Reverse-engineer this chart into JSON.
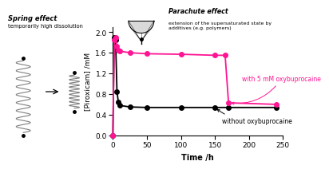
{
  "black_x": [
    0,
    2,
    4,
    6,
    8,
    10,
    25,
    50,
    100,
    150,
    170,
    240
  ],
  "black_y": [
    0,
    1.9,
    1.85,
    0.85,
    0.65,
    0.58,
    0.55,
    0.54,
    0.54,
    0.54,
    0.54,
    0.54
  ],
  "magenta_x": [
    0,
    2,
    4,
    6,
    8,
    10,
    25,
    50,
    100,
    150,
    165,
    170,
    240
  ],
  "magenta_y": [
    0,
    1.85,
    1.9,
    1.72,
    1.65,
    1.63,
    1.6,
    1.58,
    1.57,
    1.55,
    1.55,
    0.63,
    0.6
  ],
  "black_color": "#000000",
  "magenta_color": "#FF1493",
  "xlabel": "Time /h",
  "ylabel": "[Piroxicam] /mM",
  "xlim": [
    0,
    250
  ],
  "ylim": [
    0,
    2.1
  ],
  "xticks": [
    0,
    50,
    100,
    150,
    200,
    250
  ],
  "yticks": [
    0,
    0.4,
    0.8,
    1.2,
    1.6,
    2.0
  ],
  "label_with": "with 5 mM oxybuprocaine",
  "label_without": "without oxybuprocaine",
  "spring_title": "Spring effect",
  "spring_subtitle": "temporarily high dissolution",
  "parachute_title": "Parachute effect",
  "parachute_subtitle": "extension of the supersaturated state by\nadditives (e.g. polymers)"
}
